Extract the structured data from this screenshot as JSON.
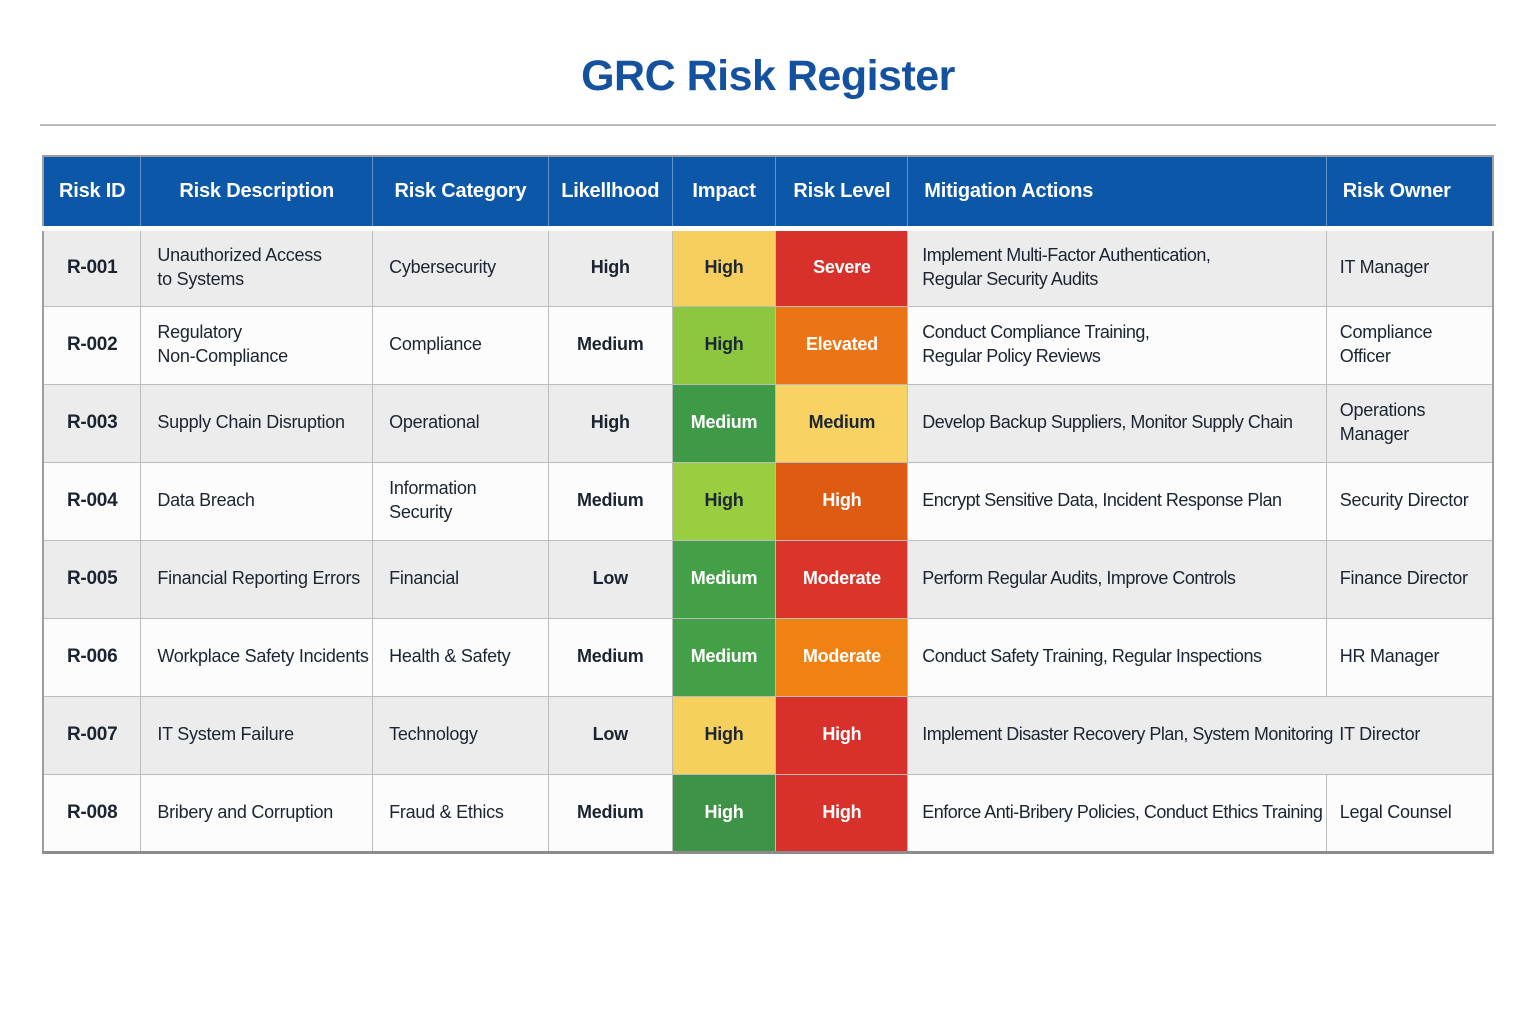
{
  "page": {
    "title": "GRC Risk Register"
  },
  "colors": {
    "header_bg": "#0d57a8",
    "title": "#14519f",
    "row_odd": "#ececec",
    "row_even": "#fcfcfc",
    "cell_border": "#bcbcbc",
    "severity_red": "#d8312b",
    "severity_orange": "#ec7414",
    "severity_yellow": "#f6ce5d",
    "severity_green_dark": "#3f9a47",
    "severity_green_light": "#8dc63f"
  },
  "table": {
    "columns": [
      "Risk ID",
      "Risk Description",
      "Risk Category",
      "Likellhood",
      "Impact",
      "Risk Level",
      "Mitigation Actions",
      "Risk Owner"
    ],
    "rows": [
      {
        "id": "R-001",
        "description": [
          "Unauthorized Access",
          "to Systems"
        ],
        "category": [
          "Cybersecurity"
        ],
        "likelihood": "High",
        "impact": {
          "label": "High",
          "bg": "#f6ce5d",
          "fg": "#1d2733"
        },
        "level": {
          "label": "Severe",
          "bg": "#d8312b",
          "fg": "#ffffff"
        },
        "mitigation": [
          "Implement Multi-Factor Authentication,",
          "Regular Security Audits"
        ],
        "owner": [
          "IT Manager"
        ]
      },
      {
        "id": "R-002",
        "description": [
          "Regulatory",
          "Non-Compliance"
        ],
        "category": [
          "Compliance"
        ],
        "likelihood": "Medium",
        "impact": {
          "label": "High",
          "bg": "#8dc63f",
          "fg": "#1d2733"
        },
        "level": {
          "label": "Elevated",
          "bg": "#ec7414",
          "fg": "#ffffff"
        },
        "mitigation": [
          "Conduct Compliance Training,",
          "Regular Policy Reviews"
        ],
        "owner": [
          "Compliance",
          "Officer"
        ]
      },
      {
        "id": "R-003",
        "description": [
          "Supply Chain Disruption"
        ],
        "category": [
          "Operational"
        ],
        "likelihood": "High",
        "impact": {
          "label": "Medium",
          "bg": "#3f9a47",
          "fg": "#ffffff"
        },
        "level": {
          "label": "Medium",
          "bg": "#f8d364",
          "fg": "#1d2733"
        },
        "mitigation": [
          "Develop Backup Suppliers, Monitor Supply Chain"
        ],
        "owner": [
          "Operations",
          "Manager"
        ]
      },
      {
        "id": "R-004",
        "description": [
          "Data Breach"
        ],
        "category": [
          "Information",
          "Security"
        ],
        "likelihood": "Medium",
        "impact": {
          "label": "High",
          "bg": "#9acd3f",
          "fg": "#1d2733"
        },
        "level": {
          "label": "High",
          "bg": "#dd5b13",
          "fg": "#ffffff"
        },
        "mitigation": [
          "Encrypt Sensitive Data, Incident Response Plan"
        ],
        "owner": [
          "Security Director"
        ]
      },
      {
        "id": "R-005",
        "description": [
          "Financial Reporting Errors"
        ],
        "category": [
          "Financial"
        ],
        "likelihood": "Low",
        "impact": {
          "label": "Medium",
          "bg": "#43a047",
          "fg": "#ffffff"
        },
        "level": {
          "label": "Moderate",
          "bg": "#db342b",
          "fg": "#ffffff"
        },
        "mitigation": [
          "Perform Regular Audits, Improve Controls"
        ],
        "owner": [
          "Finance Director"
        ]
      },
      {
        "id": "R-006",
        "description": [
          "Workplace Safety Incidents"
        ],
        "category": [
          "Health & Safety"
        ],
        "likelihood": "Medium",
        "impact": {
          "label": "Medium",
          "bg": "#43a047",
          "fg": "#ffffff"
        },
        "level": {
          "label": "Moderate",
          "bg": "#ef8212",
          "fg": "#ffffff"
        },
        "mitigation": [
          "Conduct Safety Training, Regular Inspections"
        ],
        "owner": [
          "HR Manager"
        ]
      },
      {
        "id": "R-007",
        "description": [
          "IT System Failure"
        ],
        "category": [
          "Technology"
        ],
        "likelihood": "Low",
        "impact": {
          "label": "High",
          "bg": "#f5d05c",
          "fg": "#1d2733"
        },
        "level": {
          "label": "High",
          "bg": "#d8312b",
          "fg": "#ffffff"
        },
        "mitigation": [
          "Implement Disaster Recovery Plan, System Monitoring"
        ],
        "owner": [
          "IT Director"
        ],
        "merged_owner_border": true
      },
      {
        "id": "R-008",
        "description": [
          "Bribery and Corruption"
        ],
        "category": [
          "Fraud & Ethics"
        ],
        "likelihood": "Medium",
        "impact": {
          "label": "High",
          "bg": "#3e9347",
          "fg": "#ffffff"
        },
        "level": {
          "label": "High",
          "bg": "#d8312b",
          "fg": "#ffffff"
        },
        "mitigation": [
          "Enforce Anti-Bribery Policies, Conduct Ethics Training"
        ],
        "owner": [
          "Legal Counsel"
        ]
      }
    ]
  }
}
